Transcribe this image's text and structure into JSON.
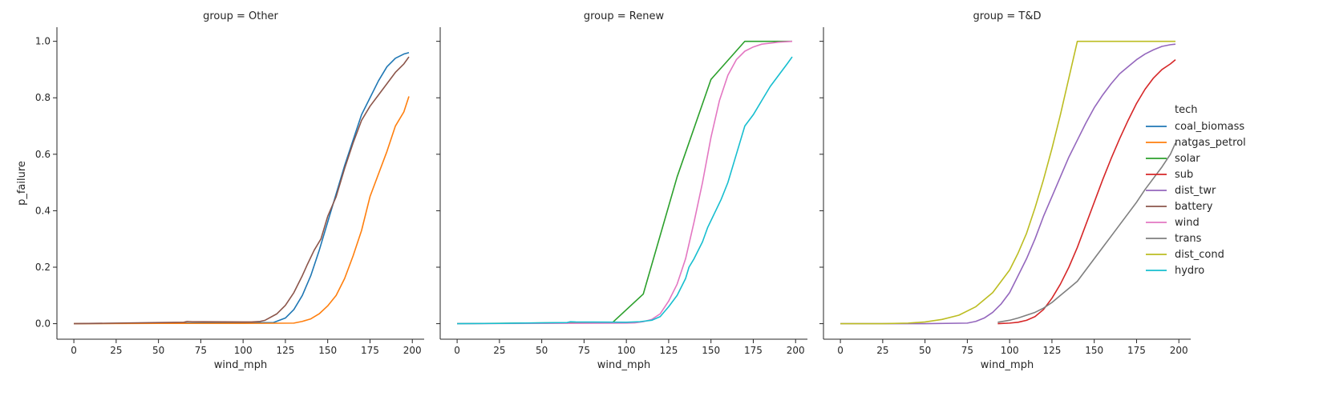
{
  "chart_data": {
    "type": "line",
    "xlabel": "wind_mph",
    "ylabel": "p_failure",
    "xlim": [
      -10,
      207
    ],
    "ylim": [
      -0.055,
      1.05
    ],
    "x_ticks": [
      0,
      25,
      50,
      75,
      100,
      125,
      150,
      175,
      200
    ],
    "y_ticks": [
      0.0,
      0.2,
      0.4,
      0.6,
      0.8,
      1.0
    ],
    "x_tick_labels": [
      "0",
      "25",
      "50",
      "75",
      "100",
      "125",
      "150",
      "175",
      "200"
    ],
    "y_tick_labels": [
      "0.0",
      "0.2",
      "0.4",
      "0.6",
      "0.8",
      "1.0"
    ],
    "grid": false,
    "legend": {
      "title": "tech",
      "placement": "right",
      "entries": [
        {
          "name": "coal_biomass",
          "color": "#1f77b4"
        },
        {
          "name": "natgas_petrol",
          "color": "#ff7f0e"
        },
        {
          "name": "solar",
          "color": "#2ca02c"
        },
        {
          "name": "sub",
          "color": "#d62728"
        },
        {
          "name": "dist_twr",
          "color": "#9467bd"
        },
        {
          "name": "battery",
          "color": "#8c564b"
        },
        {
          "name": "wind",
          "color": "#e377c2"
        },
        {
          "name": "trans",
          "color": "#7f7f7f"
        },
        {
          "name": "dist_cond",
          "color": "#bcbd22"
        },
        {
          "name": "hydro",
          "color": "#17becf"
        }
      ]
    },
    "panels": [
      {
        "title": "group = Other",
        "series": [
          {
            "name": "coal_biomass",
            "color": "#1f77b4",
            "points": [
              [
                0,
                0.0
              ],
              [
                50,
                0.002
              ],
              [
                100,
                0.003
              ],
              [
                118,
                0.004
              ],
              [
                125,
                0.02
              ],
              [
                130,
                0.05
              ],
              [
                135,
                0.1
              ],
              [
                140,
                0.17
              ],
              [
                145,
                0.26
              ],
              [
                150,
                0.36
              ],
              [
                155,
                0.46
              ],
              [
                160,
                0.56
              ],
              [
                165,
                0.65
              ],
              [
                170,
                0.74
              ],
              [
                175,
                0.8
              ],
              [
                180,
                0.86
              ],
              [
                185,
                0.91
              ],
              [
                190,
                0.94
              ],
              [
                195,
                0.955
              ],
              [
                198,
                0.96
              ]
            ]
          },
          {
            "name": "natgas_petrol",
            "color": "#ff7f0e",
            "points": [
              [
                0,
                0.0
              ],
              [
                50,
                0.001
              ],
              [
                100,
                0.001
              ],
              [
                130,
                0.002
              ],
              [
                135,
                0.008
              ],
              [
                140,
                0.017
              ],
              [
                145,
                0.035
              ],
              [
                150,
                0.063
              ],
              [
                155,
                0.1
              ],
              [
                160,
                0.16
              ],
              [
                165,
                0.24
              ],
              [
                170,
                0.33
              ],
              [
                175,
                0.45
              ],
              [
                180,
                0.53
              ],
              [
                185,
                0.61
              ],
              [
                190,
                0.7
              ],
              [
                195,
                0.75
              ],
              [
                198,
                0.805
              ]
            ]
          },
          {
            "name": "battery",
            "color": "#8c564b",
            "points": [
              [
                0,
                0.0
              ],
              [
                25,
                0.002
              ],
              [
                50,
                0.004
              ],
              [
                65,
                0.005
              ],
              [
                67,
                0.008
              ],
              [
                70,
                0.007
              ],
              [
                100,
                0.006
              ],
              [
                105,
                0.006
              ],
              [
                110,
                0.008
              ],
              [
                113,
                0.012
              ],
              [
                120,
                0.035
              ],
              [
                125,
                0.065
              ],
              [
                130,
                0.11
              ],
              [
                135,
                0.17
              ],
              [
                138,
                0.21
              ],
              [
                142,
                0.26
              ],
              [
                146,
                0.3
              ],
              [
                150,
                0.38
              ],
              [
                155,
                0.45
              ],
              [
                160,
                0.55
              ],
              [
                165,
                0.64
              ],
              [
                170,
                0.72
              ],
              [
                175,
                0.77
              ],
              [
                180,
                0.81
              ],
              [
                185,
                0.85
              ],
              [
                190,
                0.89
              ],
              [
                195,
                0.92
              ],
              [
                198,
                0.945
              ]
            ]
          }
        ]
      },
      {
        "title": "group = Renew",
        "series": [
          {
            "name": "solar",
            "color": "#2ca02c",
            "points": [
              [
                0,
                0.0
              ],
              [
                92,
                0.005
              ],
              [
                110,
                0.105
              ],
              [
                130,
                0.52
              ],
              [
                150,
                0.865
              ],
              [
                170,
                1.0
              ],
              [
                198,
                1.0
              ]
            ]
          },
          {
            "name": "wind",
            "color": "#e377c2",
            "points": [
              [
                0,
                0.0
              ],
              [
                100,
                0.002
              ],
              [
                105,
                0.003
              ],
              [
                110,
                0.007
              ],
              [
                115,
                0.015
              ],
              [
                120,
                0.035
              ],
              [
                125,
                0.08
              ],
              [
                130,
                0.14
              ],
              [
                135,
                0.23
              ],
              [
                140,
                0.36
              ],
              [
                145,
                0.5
              ],
              [
                150,
                0.66
              ],
              [
                155,
                0.79
              ],
              [
                160,
                0.88
              ],
              [
                165,
                0.935
              ],
              [
                170,
                0.965
              ],
              [
                175,
                0.98
              ],
              [
                180,
                0.99
              ],
              [
                190,
                0.997
              ],
              [
                198,
                1.0
              ]
            ]
          },
          {
            "name": "hydro",
            "color": "#17becf",
            "points": [
              [
                0,
                0.0
              ],
              [
                25,
                0.001
              ],
              [
                50,
                0.003
              ],
              [
                65,
                0.004
              ],
              [
                67,
                0.007
              ],
              [
                70,
                0.006
              ],
              [
                100,
                0.005
              ],
              [
                108,
                0.007
              ],
              [
                115,
                0.012
              ],
              [
                120,
                0.025
              ],
              [
                125,
                0.06
              ],
              [
                130,
                0.1
              ],
              [
                135,
                0.16
              ],
              [
                137,
                0.2
              ],
              [
                140,
                0.23
              ],
              [
                145,
                0.29
              ],
              [
                148,
                0.34
              ],
              [
                152,
                0.39
              ],
              [
                156,
                0.44
              ],
              [
                160,
                0.5
              ],
              [
                165,
                0.6
              ],
              [
                170,
                0.7
              ],
              [
                175,
                0.74
              ],
              [
                180,
                0.79
              ],
              [
                185,
                0.84
              ],
              [
                190,
                0.88
              ],
              [
                195,
                0.92
              ],
              [
                198,
                0.945
              ]
            ]
          }
        ]
      },
      {
        "title": "group = T&D",
        "series": [
          {
            "name": "sub",
            "color": "#d62728",
            "points": [
              [
                93,
                0.0
              ],
              [
                100,
                0.002
              ],
              [
                105,
                0.005
              ],
              [
                110,
                0.012
              ],
              [
                115,
                0.025
              ],
              [
                120,
                0.05
              ],
              [
                125,
                0.09
              ],
              [
                130,
                0.14
              ],
              [
                135,
                0.2
              ],
              [
                140,
                0.27
              ],
              [
                145,
                0.35
              ],
              [
                150,
                0.43
              ],
              [
                155,
                0.51
              ],
              [
                160,
                0.585
              ],
              [
                165,
                0.655
              ],
              [
                170,
                0.72
              ],
              [
                175,
                0.78
              ],
              [
                180,
                0.83
              ],
              [
                185,
                0.87
              ],
              [
                190,
                0.9
              ],
              [
                195,
                0.92
              ],
              [
                198,
                0.935
              ]
            ]
          },
          {
            "name": "dist_twr",
            "color": "#9467bd",
            "points": [
              [
                0,
                0.0
              ],
              [
                50,
                0.0
              ],
              [
                75,
                0.002
              ],
              [
                80,
                0.008
              ],
              [
                85,
                0.02
              ],
              [
                90,
                0.04
              ],
              [
                95,
                0.07
              ],
              [
                100,
                0.11
              ],
              [
                105,
                0.17
              ],
              [
                110,
                0.23
              ],
              [
                115,
                0.3
              ],
              [
                120,
                0.38
              ],
              [
                125,
                0.45
              ],
              [
                130,
                0.52
              ],
              [
                135,
                0.59
              ],
              [
                140,
                0.65
              ],
              [
                145,
                0.71
              ],
              [
                150,
                0.765
              ],
              [
                155,
                0.81
              ],
              [
                160,
                0.85
              ],
              [
                165,
                0.885
              ],
              [
                170,
                0.91
              ],
              [
                175,
                0.935
              ],
              [
                180,
                0.955
              ],
              [
                185,
                0.97
              ],
              [
                190,
                0.982
              ],
              [
                195,
                0.988
              ],
              [
                198,
                0.99
              ]
            ]
          },
          {
            "name": "trans",
            "color": "#7f7f7f",
            "points": [
              [
                93,
                0.005
              ],
              [
                100,
                0.012
              ],
              [
                105,
                0.02
              ],
              [
                110,
                0.03
              ],
              [
                115,
                0.04
              ],
              [
                120,
                0.055
              ],
              [
                125,
                0.075
              ],
              [
                130,
                0.1
              ],
              [
                135,
                0.125
              ],
              [
                140,
                0.15
              ],
              [
                145,
                0.19
              ],
              [
                150,
                0.23
              ],
              [
                155,
                0.27
              ],
              [
                160,
                0.31
              ],
              [
                165,
                0.35
              ],
              [
                170,
                0.39
              ],
              [
                175,
                0.43
              ],
              [
                180,
                0.475
              ],
              [
                185,
                0.515
              ],
              [
                190,
                0.555
              ],
              [
                195,
                0.6
              ],
              [
                198,
                0.64
              ]
            ]
          },
          {
            "name": "dist_cond",
            "color": "#bcbd22",
            "points": [
              [
                0,
                0.0
              ],
              [
                25,
                0.0
              ],
              [
                40,
                0.002
              ],
              [
                50,
                0.006
              ],
              [
                60,
                0.015
              ],
              [
                70,
                0.03
              ],
              [
                80,
                0.06
              ],
              [
                90,
                0.11
              ],
              [
                100,
                0.19
              ],
              [
                105,
                0.25
              ],
              [
                110,
                0.32
              ],
              [
                115,
                0.41
              ],
              [
                120,
                0.51
              ],
              [
                125,
                0.62
              ],
              [
                130,
                0.74
              ],
              [
                135,
                0.87
              ],
              [
                140,
                1.0
              ],
              [
                150,
                1.0
              ],
              [
                175,
                1.0
              ],
              [
                198,
                1.0
              ]
            ]
          }
        ]
      }
    ]
  }
}
